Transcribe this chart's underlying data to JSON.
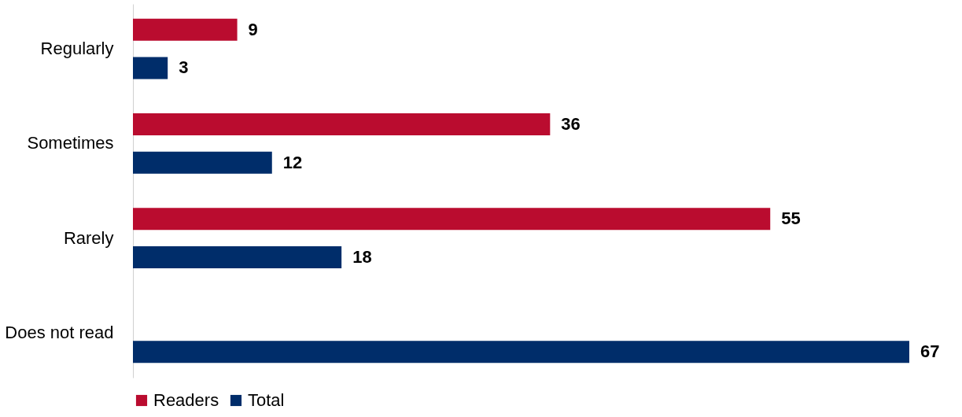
{
  "chart_data": {
    "type": "bar",
    "orientation": "horizontal",
    "categories": [
      "Regularly",
      "Sometimes",
      "Rarely",
      "Does not read"
    ],
    "series": [
      {
        "name": "Readers",
        "color": "#ba0c2f",
        "values": [
          9,
          36,
          55,
          null
        ]
      },
      {
        "name": "Total",
        "color": "#002d6a",
        "values": [
          3,
          12,
          18,
          67
        ]
      }
    ],
    "data_labels": true,
    "legend": "bottom",
    "grid": false,
    "tick_labels": "y"
  }
}
